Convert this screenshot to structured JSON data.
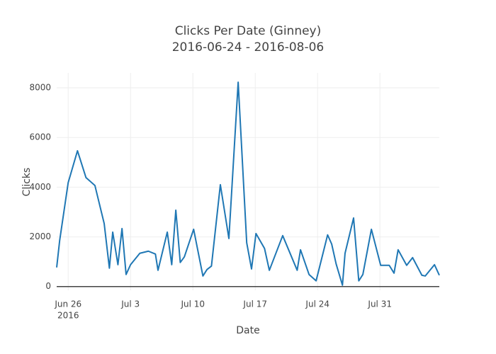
{
  "chart_data": {
    "type": "line",
    "title": "Clicks Per Date (Ginney)",
    "subtitle": "2016-06-24 - 2016-08-06",
    "x_label": "Date",
    "y_label": "Clicks",
    "x": [
      "2016-06-24 17:00",
      "2016-06-25 01:00",
      "2016-06-26 00:00",
      "2016-06-27 01:00",
      "2016-06-28 00:00",
      "2016-06-29 00:00",
      "2016-06-30 01:00",
      "2016-06-30 15:00",
      "2016-07-01 00:00",
      "2016-07-01 14:00",
      "2016-07-02 01:00",
      "2016-07-02 12:00",
      "2016-07-03 00:00",
      "2016-07-04 01:00",
      "2016-07-05 00:00",
      "2016-07-05 19:00",
      "2016-07-06 02:00",
      "2016-07-07 03:00",
      "2016-07-07 15:00",
      "2016-07-08 02:00",
      "2016-07-08 14:00",
      "2016-07-09 01:00",
      "2016-07-10 02:00",
      "2016-07-11 03:00",
      "2016-07-11 14:00",
      "2016-07-12 02:00",
      "2016-07-13 02:00",
      "2016-07-14 01:00",
      "2016-07-15 02:00",
      "2016-07-16 01:00",
      "2016-07-16 14:00",
      "2016-07-17 02:00",
      "2016-07-18 01:00",
      "2016-07-18 14:00",
      "2016-07-20 02:00",
      "2016-07-21 17:00",
      "2016-07-22 02:00",
      "2016-07-23 01:00",
      "2016-07-23 20:00",
      "2016-07-25 03:00",
      "2016-07-25 14:00",
      "2016-07-26 02:00",
      "2016-07-26 19:00",
      "2016-07-27 02:00",
      "2016-07-28 01:00",
      "2016-07-28 15:00",
      "2016-07-29 02:00",
      "2016-07-30 01:00",
      "2016-07-31 02:00",
      "2016-08-01 01:00",
      "2016-08-01 14:00",
      "2016-08-02 01:00",
      "2016-08-03 00:00",
      "2016-08-03 16:00",
      "2016-08-04 17:00",
      "2016-08-05 02:00",
      "2016-08-06 03:00",
      "2016-08-06 16:00"
    ],
    "series": [
      {
        "name": "Clicks",
        "color": "#1f77b4",
        "values": [
          770,
          1850,
          4185,
          5465,
          4385,
          4070,
          2535,
          740,
          2190,
          880,
          2335,
          485,
          880,
          1340,
          1425,
          1310,
          655,
          2190,
          880,
          3075,
          970,
          1195,
          2305,
          425,
          685,
          825,
          4100,
          1935,
          8225,
          1765,
          710,
          2135,
          1535,
          655,
          2050,
          655,
          1480,
          485,
          230,
          2080,
          1710,
          910,
          55,
          1340,
          2760,
          230,
          485,
          2305,
          855,
          855,
          540,
          1480,
          855,
          1165,
          455,
          425,
          880,
          455
        ]
      }
    ],
    "xlim": [
      "2016-06-24 17:00",
      "2016-08-06 16:00"
    ],
    "xticks": [
      {
        "value": "2016-06-26",
        "label": "Jun 26",
        "year": "2016"
      },
      {
        "value": "2016-07-03",
        "label": "Jul 3"
      },
      {
        "value": "2016-07-10",
        "label": "Jul 10"
      },
      {
        "value": "2016-07-17",
        "label": "Jul 17"
      },
      {
        "value": "2016-07-24",
        "label": "Jul 24"
      },
      {
        "value": "2016-07-31",
        "label": "Jul 31"
      }
    ],
    "ylim": [
      -150,
      8600
    ],
    "yticks": [
      0,
      2000,
      4000,
      6000,
      8000
    ],
    "grid": true
  }
}
